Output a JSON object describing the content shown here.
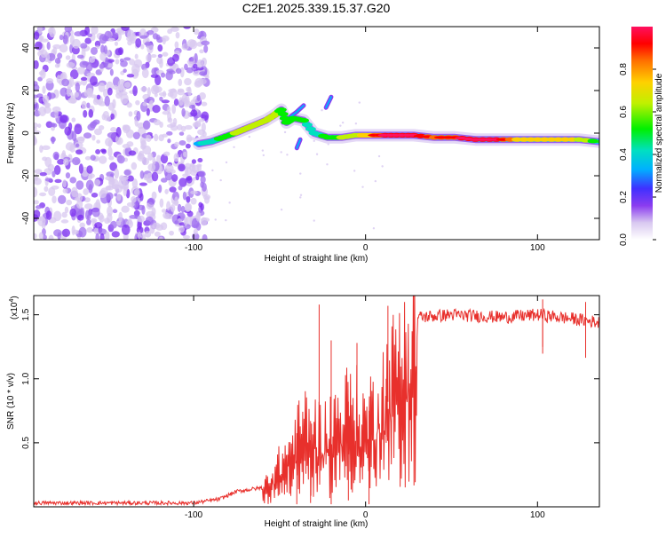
{
  "title": "C2E1.2025.339.15.37.G20",
  "chart_data": [
    {
      "type": "heatmap",
      "name": "spectrogram",
      "xlabel": "Height of straight line (km)",
      "ylabel": "Frequency (Hz)",
      "xlim": [
        -193,
        136
      ],
      "ylim": [
        -50,
        50
      ],
      "xticks": [
        -100,
        0,
        100
      ],
      "xtick_labels": [
        "-100",
        "0",
        "100"
      ],
      "yticks": [
        -40,
        -20,
        0,
        20,
        40
      ],
      "ytick_labels": [
        "-40",
        "-20",
        "0",
        "20",
        "40"
      ],
      "colorbar": {
        "label": "Normalized spectral amplitude",
        "range": [
          0,
          1
        ],
        "ticks": [
          0.0,
          0.2,
          0.4,
          0.6,
          0.8
        ],
        "tick_labels": [
          "0.0",
          "0.2",
          "0.4",
          "0.6",
          "0.8"
        ],
        "colors": [
          "#ffffff",
          "#d8c8f0",
          "#8a3cf0",
          "#4030ff",
          "#00b0ff",
          "#00e0c0",
          "#00f000",
          "#c0f000",
          "#ffd000",
          "#ff7000",
          "#ff0000",
          "#ff1060"
        ]
      },
      "features": {
        "noise_region_x": [
          -193,
          -90
        ],
        "signal_track": [
          {
            "x": -97,
            "y": -5,
            "amp": 0.4
          },
          {
            "x": -90,
            "y": -4,
            "amp": 0.45
          },
          {
            "x": -83,
            "y": -2,
            "amp": 0.55
          },
          {
            "x": -76,
            "y": 0,
            "amp": 0.6
          },
          {
            "x": -70,
            "y": 2,
            "amp": 0.6
          },
          {
            "x": -64,
            "y": 4,
            "amp": 0.65
          },
          {
            "x": -58,
            "y": 6,
            "amp": 0.6
          },
          {
            "x": -52,
            "y": 9,
            "amp": 0.65
          },
          {
            "x": -49,
            "y": 11,
            "amp": 0.55
          },
          {
            "x": -46,
            "y": 5,
            "amp": 0.5
          },
          {
            "x": -42,
            "y": 7,
            "amp": 0.5
          },
          {
            "x": -36,
            "y": 6,
            "amp": 0.5
          },
          {
            "x": -30,
            "y": 0,
            "amp": 0.45
          },
          {
            "x": -22,
            "y": -2,
            "amp": 0.55
          },
          {
            "x": -14,
            "y": -2,
            "amp": 0.6
          },
          {
            "x": -6,
            "y": -1,
            "amp": 0.65
          },
          {
            "x": 0,
            "y": -1,
            "amp": 0.7
          },
          {
            "x": 8,
            "y": -1,
            "amp": 0.85
          },
          {
            "x": 18,
            "y": -1,
            "amp": 0.95
          },
          {
            "x": 28,
            "y": -1,
            "amp": 0.9
          },
          {
            "x": 40,
            "y": -2,
            "amp": 0.8
          },
          {
            "x": 52,
            "y": -2,
            "amp": 0.85
          },
          {
            "x": 64,
            "y": -3,
            "amp": 0.95
          },
          {
            "x": 76,
            "y": -3,
            "amp": 0.9
          },
          {
            "x": 88,
            "y": -3,
            "amp": 0.75
          },
          {
            "x": 100,
            "y": -3,
            "amp": 0.7
          },
          {
            "x": 112,
            "y": -3,
            "amp": 0.75
          },
          {
            "x": 124,
            "y": -3,
            "amp": 0.65
          },
          {
            "x": 136,
            "y": -4,
            "amp": 0.55
          }
        ],
        "branch_track": [
          {
            "x": -48,
            "y": 5
          },
          {
            "x": -40,
            "y": 10
          },
          {
            "x": -36,
            "y": 13
          }
        ],
        "upper_branch": [
          {
            "x": -23,
            "y": 12
          },
          {
            "x": -20,
            "y": 17
          }
        ],
        "lower_branch": [
          {
            "x": -38,
            "y": -3
          },
          {
            "x": -40,
            "y": -7
          }
        ]
      }
    },
    {
      "type": "line",
      "name": "snr",
      "xlabel": "Height of straight line (km)",
      "ylabel": "SNR (10 * v/v)",
      "yscale_label": "(x10",
      "yscale_exp": "4",
      "yscale_close": ")",
      "xlim": [
        -193,
        136
      ],
      "ylim": [
        0,
        1.65
      ],
      "xticks": [
        -100,
        0,
        100
      ],
      "xtick_labels": [
        "-100",
        "0",
        "100"
      ],
      "yticks": [
        0.5,
        1.0,
        1.5
      ],
      "ytick_labels": [
        "0.5",
        "1.0",
        "1.5"
      ],
      "color": "#e8302c",
      "series_envelope": [
        {
          "x": -193,
          "y": 0.03
        },
        {
          "x": -100,
          "y": 0.03
        },
        {
          "x": -85,
          "y": 0.06
        },
        {
          "x": -75,
          "y": 0.12
        },
        {
          "x": -60,
          "y": 0.15
        },
        {
          "x": -55,
          "y": 0.25
        },
        {
          "x": -45,
          "y": 0.45
        },
        {
          "x": -35,
          "y": 0.7
        },
        {
          "x": -25,
          "y": 0.6
        },
        {
          "x": -15,
          "y": 0.75
        },
        {
          "x": -8,
          "y": 0.85
        },
        {
          "x": 0,
          "y": 0.7
        },
        {
          "x": 6,
          "y": 0.85
        },
        {
          "x": 14,
          "y": 1.05
        },
        {
          "x": 22,
          "y": 1.3
        },
        {
          "x": 30,
          "y": 1.48
        },
        {
          "x": 50,
          "y": 1.5
        },
        {
          "x": 80,
          "y": 1.48
        },
        {
          "x": 100,
          "y": 1.5
        },
        {
          "x": 120,
          "y": 1.47
        },
        {
          "x": 136,
          "y": 1.44
        }
      ],
      "spikes": [
        {
          "x": -27,
          "y": 1.58
        },
        {
          "x": -20,
          "y": 1.3
        },
        {
          "x": -5,
          "y": 1.28
        },
        {
          "x": 13,
          "y": 1.57
        },
        {
          "x": 103,
          "y": 1.62
        },
        {
          "x": 128,
          "y": 1.6
        }
      ],
      "dips": [
        {
          "x": -40,
          "y": 0.02
        },
        {
          "x": -32,
          "y": 0.03
        },
        {
          "x": -20,
          "y": 0.02
        },
        {
          "x": -10,
          "y": 0.05
        },
        {
          "x": 2,
          "y": 0.02
        },
        {
          "x": 12,
          "y": 0.5
        },
        {
          "x": 103,
          "y": 1.25
        }
      ]
    }
  ]
}
